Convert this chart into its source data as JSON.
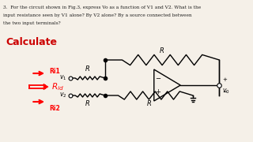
{
  "bg_color": "#f5f0e8",
  "text_color": "#1a1a1a",
  "question_text": "3.  For the circuit shown in Fig.3, express Vo as a function of V1 and V2. What is the",
  "question_text2": "input resistance seen by V1 alone? By V2 alone? By a source connected between",
  "question_text3": "the two input terminals?",
  "calc_text": "Calculate",
  "calc_color": "#cc0000",
  "ri1_text": "Ri1",
  "ri2_text": "Ri2",
  "rid_text": "$R_{id}$",
  "v1_text": "$v_1$",
  "v2_text": "$v_2$",
  "vo_text": "$v_0$",
  "R_label": "R"
}
